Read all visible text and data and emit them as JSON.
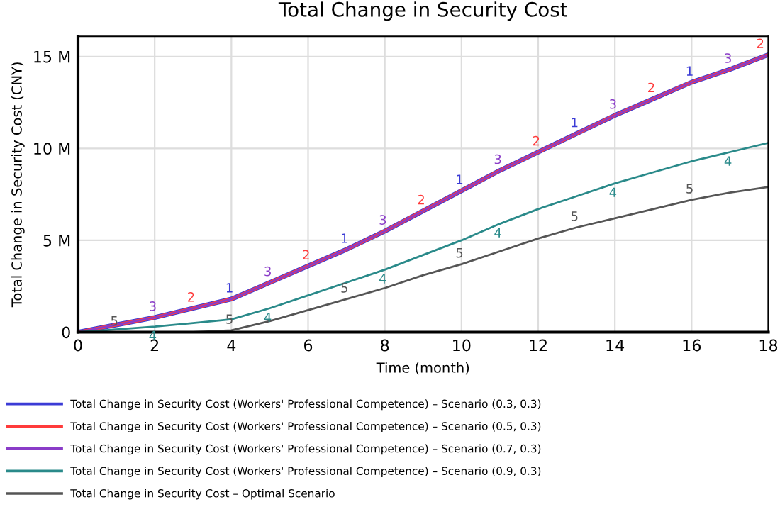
{
  "chart_data": {
    "type": "line",
    "title": "Total Change in Security Cost",
    "xlabel": "Time (month)",
    "ylabel": "Total Change in Security Cost (CNY)",
    "x": [
      0,
      1,
      2,
      3,
      4,
      5,
      6,
      7,
      8,
      9,
      10,
      11,
      12,
      13,
      14,
      15,
      16,
      17,
      18
    ],
    "xlim": [
      0,
      18
    ],
    "xticks": [
      0,
      2,
      4,
      6,
      8,
      10,
      12,
      14,
      16,
      18
    ],
    "ylim": [
      0,
      16.1
    ],
    "yticks": [
      0,
      {
        "value": 5,
        "label": "5 M"
      },
      {
        "value": 10,
        "label": "10 M"
      },
      {
        "value": 15,
        "label": "15 M"
      }
    ],
    "grid": true,
    "legend": "bottom",
    "series": [
      {
        "name": "Total Change in Security Cost (Workers' Professional Competence) – Scenario (0.3, 0.3)",
        "color": "#3b3bd6",
        "values": [
          0,
          0.4,
          0.8,
          1.3,
          1.8,
          2.7,
          3.6,
          4.5,
          5.5,
          6.6,
          7.7,
          8.8,
          9.8,
          10.8,
          11.8,
          12.7,
          13.6,
          14.3,
          15.1
        ]
      },
      {
        "name": "Total Change in Security Cost (Workers' Professional Competence) – Scenario (0.5, 0.3)",
        "color": "#ff3b3b",
        "values": [
          0,
          0.4,
          0.8,
          1.3,
          1.8,
          2.7,
          3.6,
          4.5,
          5.5,
          6.6,
          7.7,
          8.8,
          9.8,
          10.8,
          11.8,
          12.7,
          13.6,
          14.3,
          15.1
        ]
      },
      {
        "name": "Total Change in Security Cost (Workers' Professional Competence) – Scenario (0.7, 0.3)",
        "color": "#8a3cc8",
        "values": [
          0,
          0.4,
          0.8,
          1.3,
          1.8,
          2.7,
          3.6,
          4.5,
          5.5,
          6.6,
          7.7,
          8.8,
          9.8,
          10.8,
          11.8,
          12.7,
          13.6,
          14.3,
          15.1
        ]
      },
      {
        "name": "Total Change in Security Cost (Workers' Professional Competence) – Scenario (0.9, 0.3)",
        "color": "#2a8a8a",
        "values": [
          0,
          0.15,
          0.3,
          0.5,
          0.7,
          1.3,
          2.0,
          2.7,
          3.4,
          4.2,
          5.0,
          5.9,
          6.7,
          7.4,
          8.1,
          8.7,
          9.3,
          9.8,
          10.3
        ]
      },
      {
        "name": "Total Change in Security Cost – Optimal Scenario",
        "color": "#555555",
        "values": [
          0,
          0,
          0,
          0,
          0.1,
          0.6,
          1.2,
          1.8,
          2.4,
          3.1,
          3.7,
          4.4,
          5.1,
          5.7,
          6.2,
          6.7,
          7.2,
          7.6,
          7.9
        ]
      }
    ],
    "annotations": [
      {
        "text": "1",
        "x": 4,
        "y": 1.8
      },
      {
        "text": "1",
        "x": 7,
        "y": 4.5
      },
      {
        "text": "1",
        "x": 10,
        "y": 7.7
      },
      {
        "text": "1",
        "x": 13,
        "y": 10.8
      },
      {
        "text": "1",
        "x": 16,
        "y": 13.6
      },
      {
        "text": "2",
        "x": 3,
        "y": 1.3
      },
      {
        "text": "2",
        "x": 6,
        "y": 3.6
      },
      {
        "text": "2",
        "x": 9,
        "y": 6.6
      },
      {
        "text": "2",
        "x": 12,
        "y": 9.8
      },
      {
        "text": "2",
        "x": 15,
        "y": 12.7
      },
      {
        "text": "2",
        "x": 18,
        "y": 15.1
      },
      {
        "text": "3",
        "x": 2,
        "y": 0.8
      },
      {
        "text": "3",
        "x": 5,
        "y": 2.7
      },
      {
        "text": "3",
        "x": 8,
        "y": 5.5
      },
      {
        "text": "3",
        "x": 11,
        "y": 8.8
      },
      {
        "text": "3",
        "x": 14,
        "y": 11.8
      },
      {
        "text": "3",
        "x": 17,
        "y": 14.3
      },
      {
        "text": "4",
        "x": 2,
        "y": 0.3
      },
      {
        "text": "4",
        "x": 5,
        "y": 1.3
      },
      {
        "text": "4",
        "x": 8,
        "y": 3.4
      },
      {
        "text": "4",
        "x": 11,
        "y": 5.9
      },
      {
        "text": "4",
        "x": 14,
        "y": 8.1
      },
      {
        "text": "4",
        "x": 17,
        "y": 9.8
      },
      {
        "text": "5",
        "x": 1,
        "y": 0
      },
      {
        "text": "5",
        "x": 4,
        "y": 0.1
      },
      {
        "text": "5",
        "x": 7,
        "y": 1.8
      },
      {
        "text": "5",
        "x": 10,
        "y": 3.7
      },
      {
        "text": "5",
        "x": 13,
        "y": 5.7
      },
      {
        "text": "5",
        "x": 16,
        "y": 7.2
      }
    ]
  }
}
